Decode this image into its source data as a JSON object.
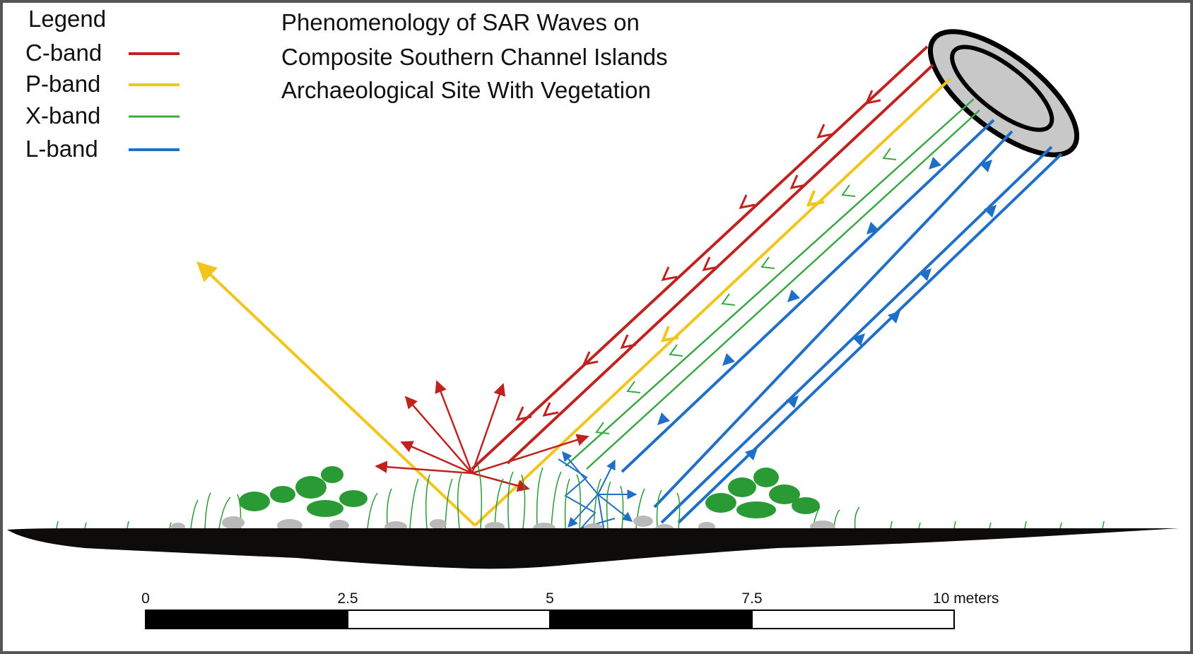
{
  "title": {
    "lines": [
      "Phenomenology of SAR Waves on",
      "Composite Southern Channel Islands",
      "Archaeological Site With Vegetation"
    ]
  },
  "legend": {
    "heading": "Legend",
    "items": [
      {
        "label": "C-band",
        "color": "#c0231f"
      },
      {
        "label": "P-band",
        "color": "#f2c51c"
      },
      {
        "label": "X-band",
        "color": "#3aa845"
      },
      {
        "label": "L-band",
        "color": "#1f6fc8"
      }
    ]
  },
  "scale_bar": {
    "ticks": [
      "0",
      "2.5",
      "5",
      "7.5",
      "10 meters"
    ]
  },
  "colors": {
    "ground": "#0d0c0a",
    "vegetation": "#2a9a35",
    "rocks": "#b9b9b9",
    "antenna_fill": "#c8c8c8",
    "frame_border": "#555555"
  }
}
